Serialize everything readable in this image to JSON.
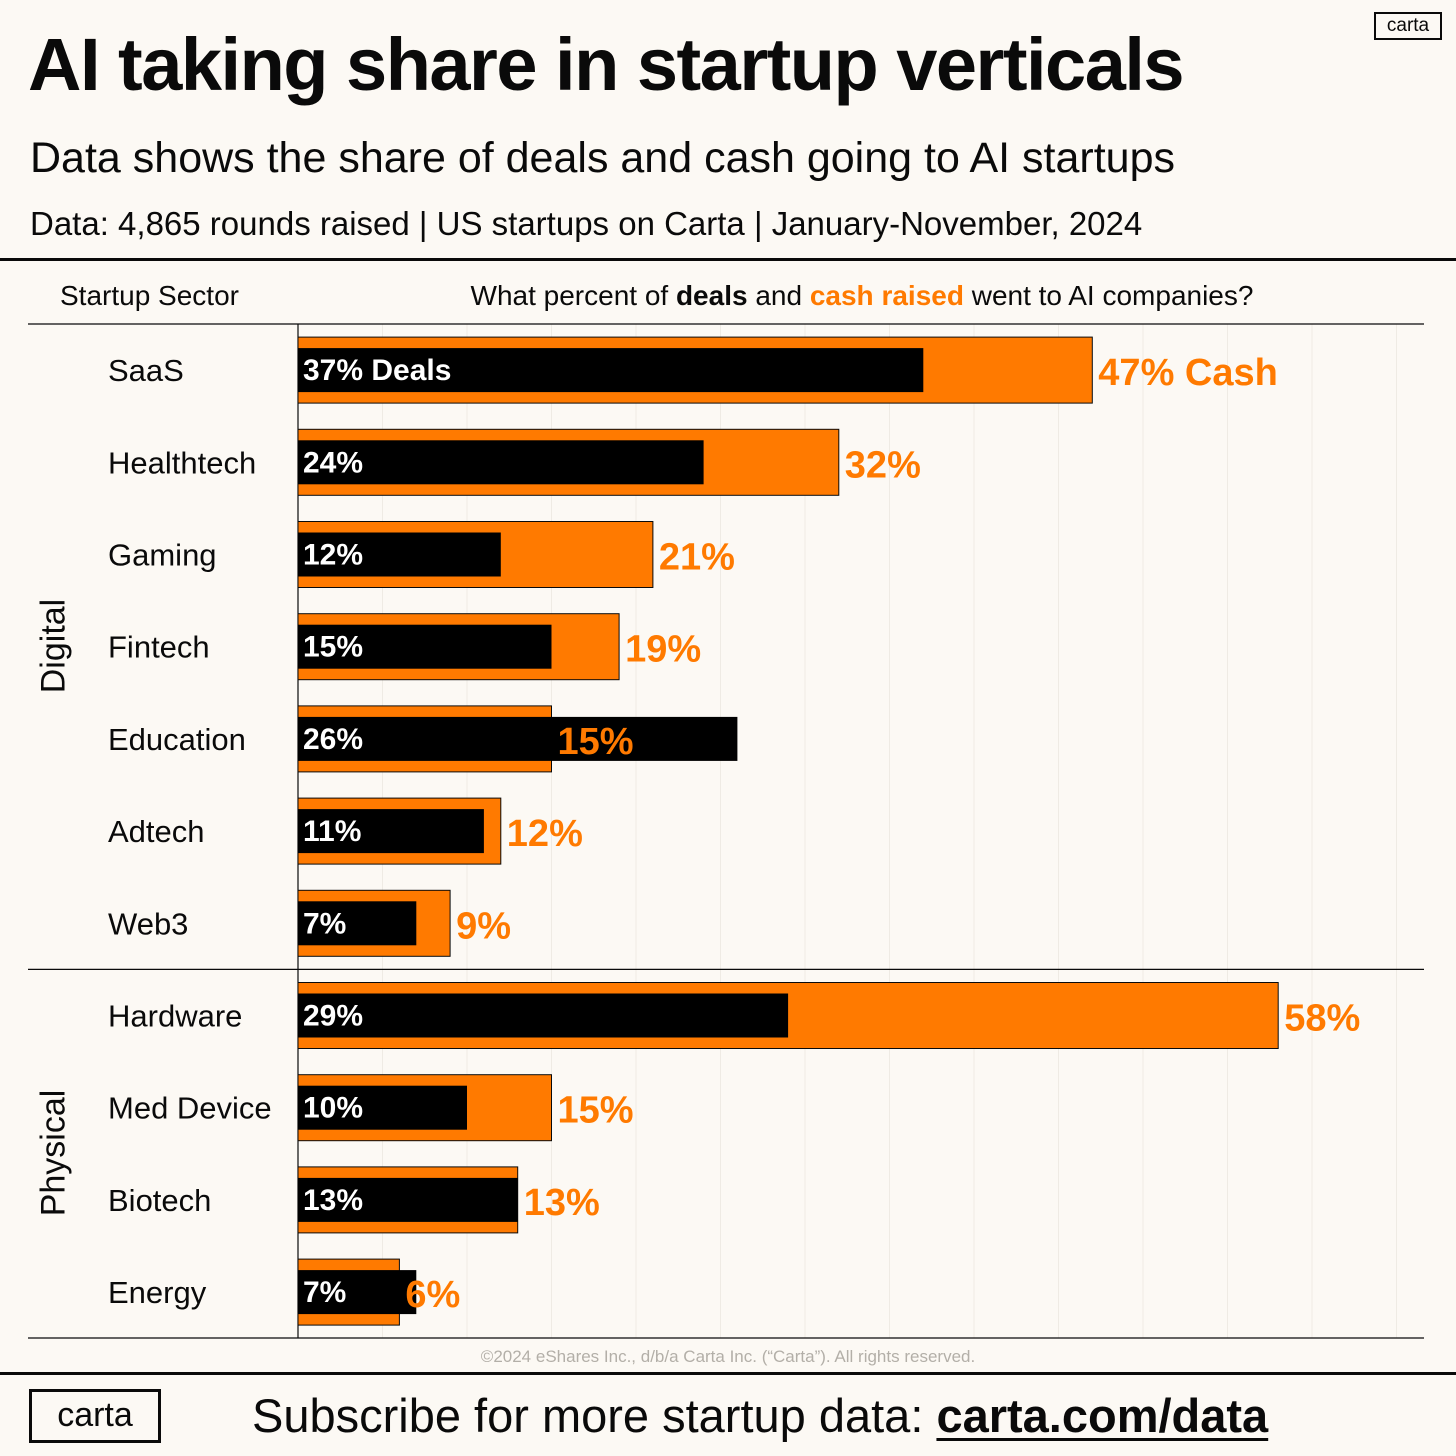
{
  "header": {
    "title": "AI taking share in startup verticals",
    "subtitle": "Data shows the share of deals and cash going to AI startups",
    "source": "Data: 4,865 rounds raised | US startups on Carta | January-November, 2024",
    "logo": "carta"
  },
  "columns": {
    "sector": "Startup Sector",
    "question_prefix": "What percent of ",
    "question_deals": "deals",
    "question_and": " and ",
    "question_cash": "cash raised",
    "question_suffix": " went to AI companies?"
  },
  "colors": {
    "cash": "#ff7a00",
    "deals": "#000000",
    "background": "#fcf9f4",
    "cash_text": "#ff7a00",
    "deals_text": "#ffffff"
  },
  "chart_data": {
    "type": "bar",
    "orientation": "horizontal",
    "series": [
      {
        "name": "Deals",
        "values": [
          37,
          24,
          12,
          15,
          26,
          11,
          7,
          29,
          10,
          13,
          7
        ]
      },
      {
        "name": "Cash",
        "values": [
          47,
          32,
          21,
          19,
          15,
          12,
          9,
          58,
          15,
          13,
          6
        ]
      }
    ],
    "groups": [
      {
        "name": "Digital",
        "categories": [
          "SaaS",
          "Healthtech",
          "Gaming",
          "Fintech",
          "Education",
          "Adtech",
          "Web3"
        ]
      },
      {
        "name": "Physical",
        "categories": [
          "Hardware",
          "Med Device",
          "Biotech",
          "Energy"
        ]
      }
    ],
    "categories": [
      "SaaS",
      "Healthtech",
      "Gaming",
      "Fintech",
      "Education",
      "Adtech",
      "Web3",
      "Hardware",
      "Med Device",
      "Biotech",
      "Energy"
    ],
    "deal_labels": [
      "37% Deals",
      "24%",
      "12%",
      "15%",
      "26%",
      "11%",
      "7%",
      "29%",
      "10%",
      "13%",
      "7%"
    ],
    "cash_labels": [
      "47% Cash",
      "32%",
      "21%",
      "19%",
      "15%",
      "12%",
      "9%",
      "58%",
      "15%",
      "13%",
      "6%"
    ],
    "xlim": [
      0,
      65
    ],
    "grid": true
  },
  "footer": {
    "copyright": "©2024 eShares Inc., d/b/a Carta Inc. (“Carta”). All rights reserved.",
    "logo": "carta",
    "cta_text": "Subscribe for more startup data: ",
    "cta_link": "carta.com/data"
  }
}
